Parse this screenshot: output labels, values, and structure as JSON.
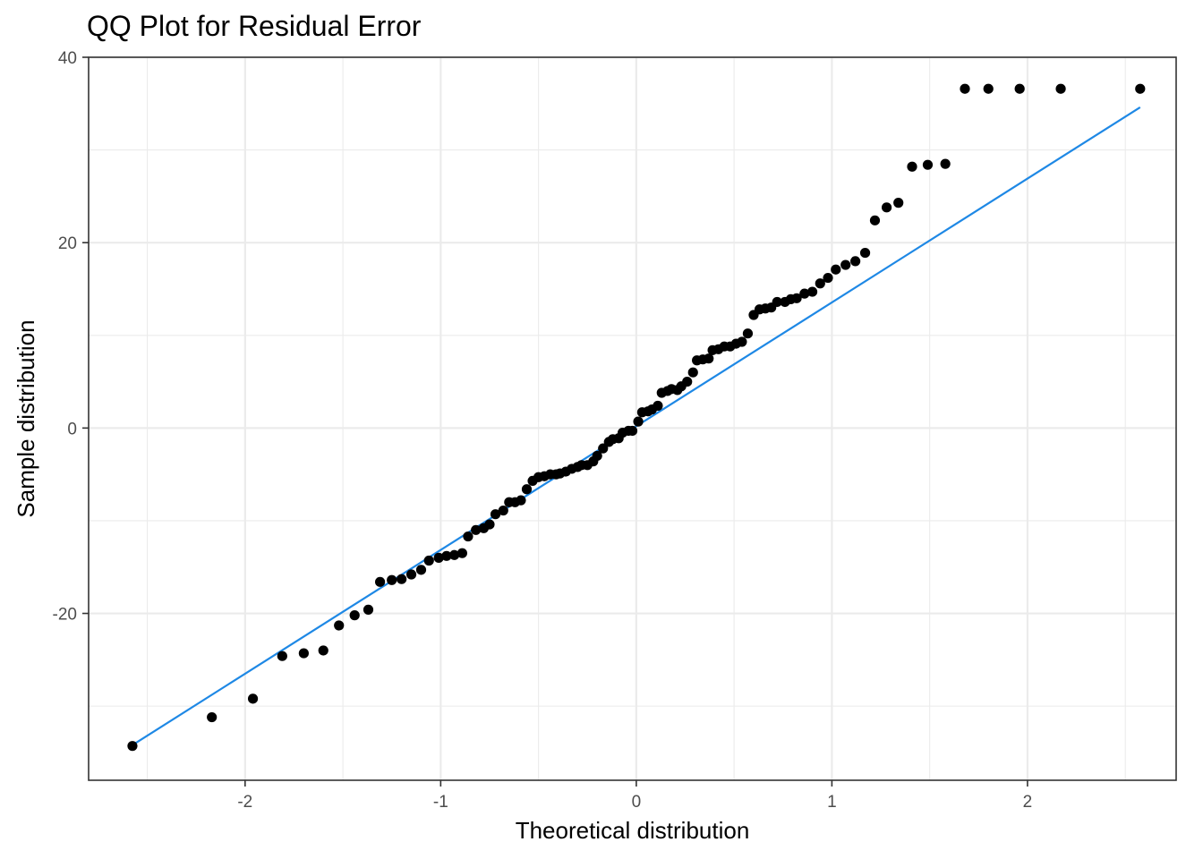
{
  "chart_data": {
    "type": "scatter",
    "title": "QQ Plot for Residual Error",
    "xlabel": "Theoretical distribution",
    "ylabel": "Sample distribution",
    "xlim": [
      -2.8,
      2.76
    ],
    "ylim": [
      -38.0,
      40.0
    ],
    "x_ticks": [
      -2,
      -1,
      0,
      1,
      2
    ],
    "x_tick_labels": [
      "-2",
      "-1",
      "0",
      "1",
      "2"
    ],
    "y_ticks": [
      -20,
      0,
      20,
      40
    ],
    "y_tick_labels": [
      "-20",
      "0",
      "20",
      "40"
    ],
    "grid": true,
    "series": [
      {
        "kind": "points",
        "color": "#000000",
        "x": [
          -2.576,
          -2.17,
          -1.96,
          -1.81,
          -1.7,
          -1.6,
          -1.52,
          -1.44,
          -1.37,
          -1.31,
          -1.25,
          -1.2,
          -1.15,
          -1.1,
          -1.06,
          -1.01,
          -0.97,
          -0.93,
          -0.89,
          -0.86,
          -0.82,
          -0.78,
          -0.75,
          -0.72,
          -0.68,
          -0.65,
          -0.62,
          -0.59,
          -0.56,
          -0.53,
          -0.5,
          -0.47,
          -0.44,
          -0.41,
          -0.39,
          -0.36,
          -0.33,
          -0.3,
          -0.28,
          -0.25,
          -0.22,
          -0.2,
          -0.17,
          -0.14,
          -0.12,
          -0.09,
          -0.07,
          -0.04,
          -0.02,
          0.01,
          0.03,
          0.06,
          0.08,
          0.11,
          0.13,
          0.16,
          0.18,
          0.21,
          0.23,
          0.26,
          0.29,
          0.31,
          0.34,
          0.37,
          0.39,
          0.42,
          0.45,
          0.48,
          0.51,
          0.54,
          0.57,
          0.6,
          0.63,
          0.66,
          0.69,
          0.72,
          0.76,
          0.79,
          0.82,
          0.86,
          0.9,
          0.94,
          0.98,
          1.02,
          1.07,
          1.12,
          1.17,
          1.22,
          1.28,
          1.34,
          1.41,
          1.49,
          1.58,
          1.68,
          1.8,
          1.96,
          2.17,
          2.576
        ],
        "y": [
          -34.3,
          -31.2,
          -29.2,
          -24.6,
          -24.3,
          -24.0,
          -21.3,
          -20.2,
          -19.6,
          -16.6,
          -16.4,
          -16.3,
          -15.8,
          -15.3,
          -14.3,
          -14.0,
          -13.8,
          -13.7,
          -13.5,
          -11.7,
          -11.0,
          -10.8,
          -10.4,
          -9.3,
          -8.9,
          -8.0,
          -8.0,
          -7.8,
          -6.6,
          -5.7,
          -5.3,
          -5.2,
          -5.0,
          -5.0,
          -4.9,
          -4.7,
          -4.4,
          -4.2,
          -4.0,
          -4.0,
          -3.6,
          -3.0,
          -2.2,
          -1.5,
          -1.2,
          -1.1,
          -0.5,
          -0.3,
          -0.3,
          0.7,
          1.7,
          1.8,
          2.0,
          2.4,
          3.8,
          4.0,
          4.2,
          4.1,
          4.5,
          5.0,
          6.0,
          7.3,
          7.4,
          7.5,
          8.4,
          8.5,
          8.8,
          8.8,
          9.1,
          9.3,
          10.2,
          12.2,
          12.8,
          12.9,
          13.0,
          13.6,
          13.6,
          13.9,
          14.0,
          14.5,
          14.7,
          15.6,
          16.2,
          17.1,
          17.6,
          18.0,
          18.9,
          22.4,
          23.8,
          24.3,
          28.2,
          28.4,
          28.5,
          36.6,
          36.6,
          36.6,
          36.6,
          36.6
        ],
        "x_note": ""
      },
      {
        "kind": "reference-line",
        "color": "#1e88e5",
        "x": [
          -2.576,
          2.576
        ],
        "y": [
          -34.2,
          34.6
        ]
      }
    ]
  }
}
